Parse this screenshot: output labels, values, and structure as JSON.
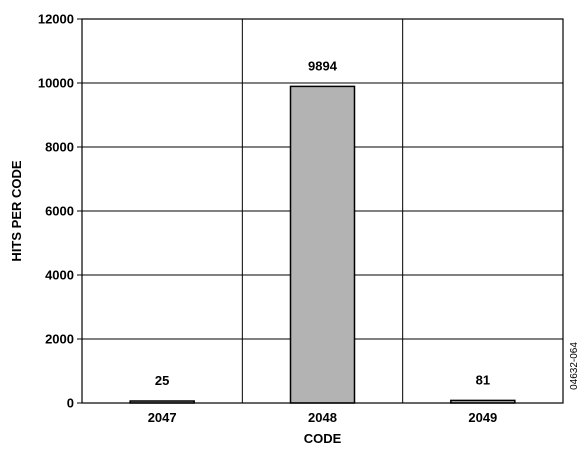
{
  "chart_data": {
    "type": "bar",
    "categories": [
      "2047",
      "2048",
      "2049"
    ],
    "values": [
      25,
      9894,
      81
    ],
    "data_labels": [
      "25",
      "9894",
      "81"
    ],
    "title": "",
    "xlabel": "CODE",
    "ylabel": "HITS PER CODE",
    "ylim": [
      0,
      12000
    ],
    "yticks": [
      0,
      2000,
      4000,
      6000,
      8000,
      10000,
      12000
    ],
    "grid": true,
    "bar_color": "#b3b3b3",
    "bar_edge_color": "#000000"
  },
  "side_note": "04632-064"
}
